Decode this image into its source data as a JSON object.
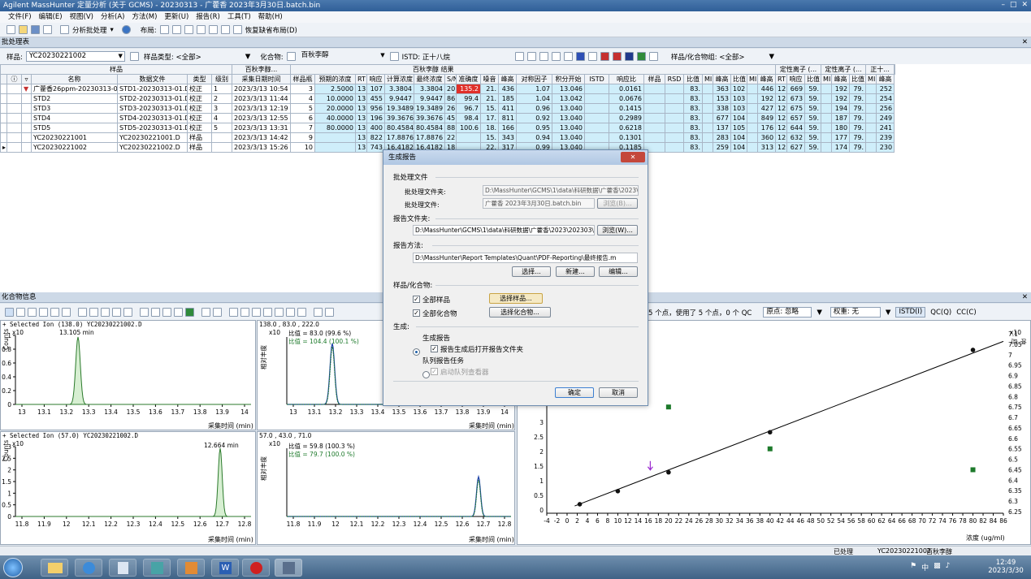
{
  "window": {
    "title": "Agilent MassHunter 定量分析 (关于 GCMS) - 20230313 - 广藿香 2023年3月30日.batch.bin"
  },
  "menu": [
    "文件(F)",
    "编辑(E)",
    "视图(V)",
    "分析(A)",
    "方法(M)",
    "更新(U)",
    "报告(R)",
    "工具(T)",
    "帮助(H)"
  ],
  "toolbar": {
    "analyze": "分析批处理",
    "layout_label": "布局:",
    "restore": "恢复缺省布局(D)"
  },
  "batch_pane": {
    "title": "批处理表"
  },
  "filters": {
    "sample_label": "样品:",
    "sample_value": "YC20230221002",
    "sample_type_label": "样品类型: <全部>",
    "compound_label": "化合物:",
    "compound_value": "百秋李醇",
    "istd_label": "ISTD: 正十八烷",
    "group_label": "样品/化合物组: <全部>"
  },
  "grid": {
    "group_headers": {
      "sample": "样品",
      "compound": "百秋李醇...",
      "result": "百秋李醇 结果",
      "istd": "正十...",
      "qual": "定性离子 (..."
    },
    "columns": [
      "名称",
      "数据文件",
      "类型",
      "级别",
      "采集日期时间",
      "样品瓶",
      "预期的浓度",
      "RT",
      "响应",
      "计算浓度",
      "最终浓度",
      "S/N",
      "准确度",
      "噪音",
      "峰高",
      "对称因子",
      "积分开始",
      "ISTD",
      "响应比",
      "样品",
      "RSD",
      "比值",
      "MI",
      "峰高",
      "比值",
      "MI",
      "峰高",
      "RT",
      "响应",
      "比值",
      "MI",
      "峰高",
      "比值",
      "MI",
      "峰高"
    ],
    "rows": [
      [
        "广藿香26ppm-20230313-01",
        "STD1-20230313-01.D",
        "校正",
        "1",
        "2023/3/13 10:54",
        "3",
        "2.5000",
        "13",
        "107",
        "3.3804",
        "3.3804",
        "20",
        "135.2",
        "21.",
        "436",
        "1.07",
        "13.046",
        "",
        "0.0161",
        "",
        "",
        "83.",
        "",
        "363",
        "102",
        "",
        "446",
        "12",
        "669",
        "59.",
        "",
        "192",
        "79.",
        "",
        "252"
      ],
      [
        "STD2",
        "STD2-20230313-01.D",
        "校正",
        "2",
        "2023/3/13 11:44",
        "4",
        "10.0000",
        "13",
        "455",
        "9.9447",
        "9.9447",
        "86",
        "99.4",
        "21.",
        "185",
        "1.04",
        "13.042",
        "",
        "0.0676",
        "",
        "",
        "83.",
        "",
        "153",
        "103",
        "",
        "192",
        "12",
        "673",
        "59.",
        "",
        "192",
        "79.",
        "",
        "254"
      ],
      [
        "STD3",
        "STD3-20230313-01.D",
        "校正",
        "3",
        "2023/3/13 12:19",
        "5",
        "20.0000",
        "13",
        "956",
        "19.3489",
        "19.3489",
        "26",
        "96.7",
        "15.",
        "411",
        "0.96",
        "13.040",
        "",
        "0.1415",
        "",
        "",
        "83.",
        "",
        "338",
        "103",
        "",
        "427",
        "12",
        "675",
        "59.",
        "",
        "194",
        "79.",
        "",
        "256"
      ],
      [
        "STD4",
        "STD4-20230313-01.D",
        "校正",
        "4",
        "2023/3/13 12:55",
        "6",
        "40.0000",
        "13",
        "196",
        "39.3676",
        "39.3676",
        "45",
        "98.4",
        "17.",
        "811",
        "0.92",
        "13.040",
        "",
        "0.2989",
        "",
        "",
        "83.",
        "",
        "677",
        "104",
        "",
        "849",
        "12",
        "657",
        "59.",
        "",
        "187",
        "79.",
        "",
        "249"
      ],
      [
        "STD5",
        "STD5-20230313-01.D",
        "校正",
        "5",
        "2023/3/13 13:31",
        "7",
        "80.0000",
        "13",
        "400",
        "80.4584",
        "80.4584",
        "88",
        "100.6",
        "18.",
        "166",
        "0.95",
        "13.040",
        "",
        "0.6218",
        "",
        "",
        "83.",
        "",
        "137",
        "105",
        "",
        "176",
        "12",
        "644",
        "59.",
        "",
        "180",
        "79.",
        "",
        "241"
      ],
      [
        "YC20230221001",
        "YC20230221001.D",
        "样品",
        "",
        "2023/3/13 14:42",
        "9",
        "",
        "13",
        "822",
        "17.8876",
        "17.8876",
        "22",
        "",
        "15.",
        "343",
        "0.94",
        "13.040",
        "",
        "0.1301",
        "",
        "",
        "83.",
        "",
        "283",
        "104",
        "",
        "360",
        "12",
        "632",
        "59.",
        "",
        "177",
        "79.",
        "",
        "239"
      ],
      [
        "YC20230221002",
        "YC20230221002.D",
        "样品",
        "",
        "2023/3/13 15:26",
        "10",
        "",
        "13",
        "743",
        "16.4182",
        "16.4182",
        "18",
        "",
        "22.",
        "317",
        "0.99",
        "13.040",
        "",
        "0.1185",
        "",
        "",
        "83.",
        "",
        "259",
        "104",
        "",
        "313",
        "12",
        "627",
        "59.",
        "",
        "174",
        "79.",
        "",
        "230"
      ]
    ]
  },
  "compound_pane": {
    "title": "化合物信息"
  },
  "chrom1": {
    "header": "+ Selected Ion (138.0) YC20230221002.D",
    "rt": "13.105 min",
    "ylabel": "Counts",
    "exp": "x10",
    "ticks": [
      "13",
      "13.1",
      "13.2",
      "13.3",
      "13.4",
      "13.5",
      "13.6",
      "13.7",
      "13.8",
      "13.9",
      "14"
    ],
    "yticks": [
      "1",
      "0.8",
      "0.6",
      "0.4",
      "0.2",
      "0"
    ],
    "xlabel": "采集时间 (min)"
  },
  "qual1": {
    "header": "138.0 , 83.0 , 222.0",
    "r1": "比值 = 83.0 (99.6 %)",
    "r2": "比值 = 104.4 (100.1 %)",
    "ylabel": "相对丰度",
    "exp": "x10",
    "ticks": [
      "13",
      "13.1",
      "13.2",
      "13.3",
      "13.4",
      "13.5",
      "13.6",
      "13.7",
      "13.8",
      "13.9",
      "14"
    ],
    "xlabel": "采集时间 (min)"
  },
  "chrom2": {
    "header": "+ Selected Ion (57.0) YC20230221002.D",
    "rt": "12.664 min",
    "ylabel": "Counts",
    "exp": "x10",
    "ticks": [
      "11.8",
      "11.9",
      "12",
      "12.1",
      "12.2",
      "12.3",
      "12.4",
      "12.5",
      "12.6",
      "12.7",
      "12.8"
    ],
    "yticks": [
      "3",
      "2.5",
      "2",
      "1.5",
      "1",
      "0.5",
      "0"
    ],
    "xlabel": "采集时间 (min)"
  },
  "qual2": {
    "header": "57.0 , 43.0 , 71.0",
    "r1": "比值 = 59.8 (100.3 %)",
    "r2": "比值 = 79.7 (100.0 %)",
    "ylabel": "相对丰度",
    "exp": "x10",
    "ticks": [
      "11.8",
      "11.9",
      "12",
      "12.1",
      "12.2",
      "12.3",
      "12.4",
      "12.5",
      "12.6",
      "12.7",
      "12.8"
    ],
    "xlabel": "采集时间 (min)"
  },
  "calib": {
    "info": "5 个点，使用了 5 个点，0 个 QC",
    "origin_label": "原点: 忽略",
    "weight_label": "权重: 无",
    "tabs": [
      "ISTD(I)",
      "QC(Q)",
      "CC(C)"
    ],
    "xlabel": "浓度 (ug/ml)",
    "xticks": [
      "-4",
      "-2",
      "0",
      "2",
      "4",
      "6",
      "8",
      "10",
      "12",
      "14",
      "16",
      "18",
      "20",
      "22",
      "24",
      "26",
      "28",
      "30",
      "32",
      "34",
      "36",
      "38",
      "40",
      "42",
      "44",
      "46",
      "48",
      "50",
      "52",
      "54",
      "56",
      "58",
      "60",
      "62",
      "64",
      "66",
      "68",
      "70",
      "72",
      "74",
      "76",
      "78",
      "80",
      "82",
      "84",
      "86"
    ],
    "yticks": [
      "3",
      "2.5",
      "2",
      "1.5",
      "1",
      "0.5",
      "0"
    ],
    "right_exp": "x10",
    "right_ticks": [
      "7.1",
      "7.05",
      "7",
      "6.95",
      "6.9",
      "6.85",
      "6.8",
      "6.75",
      "6.7",
      "6.65",
      "6.6",
      "6.55",
      "6.5",
      "6.45",
      "6.4",
      "6.35",
      "6.3",
      "6.25"
    ],
    "right_label": "响应"
  },
  "chart_data": {
    "type": "scatter",
    "xlabel": "浓度 (ug/ml)",
    "points": [
      {
        "x": 2.5,
        "y": 0.0161
      },
      {
        "x": 10,
        "y": 0.0676
      },
      {
        "x": 20,
        "y": 0.1415
      },
      {
        "x": 40,
        "y": 0.2989
      },
      {
        "x": 80,
        "y": 0.6218
      }
    ]
  },
  "dialog": {
    "title": "生成报告",
    "sec_batch": "批处理文件",
    "batch_folder_label": "批处理文件夹:",
    "batch_folder": "D:\\MassHunter\\GCMS\\1\\data\\科研数据\\广藿香\\2023\\",
    "batch_file_label": "批处理文件:",
    "batch_file": "广藿香 2023年3月30日.batch.bin",
    "browse_disabled": "浏览(B)...",
    "sec_report_folder": "报告文件夹:",
    "report_folder": "D:\\MassHunter\\GCMS\\1\\data\\科研数据\\广藿香\\2023\\202303\\20",
    "browse": "浏览(W)...",
    "sec_method": "报告方法:",
    "method_path": "D:\\MassHunter\\Report Templates\\Quant\\PDF-Reporting\\最终报告.m",
    "select": "选择...",
    "new": "新建...",
    "edit": "编辑...",
    "sec_sc": "样品/化合物:",
    "all_samples": "全部样品",
    "select_samples": "选择样品...",
    "all_compounds": "全部化合物",
    "select_compounds": "选择化合物...",
    "sec_gen": "生成:",
    "gen_report": "生成报告",
    "open_folder": "报告生成后打开报告文件夹",
    "queue": "队列报告任务",
    "start_queue": "启动队列查看器",
    "ok": "确定",
    "cancel": "取消"
  },
  "status": {
    "processed": "已处理",
    "sample": "YC20230221002",
    "compound": "百秋李醇"
  },
  "clock": {
    "time": "12:49",
    "date": "2023/3/30"
  }
}
